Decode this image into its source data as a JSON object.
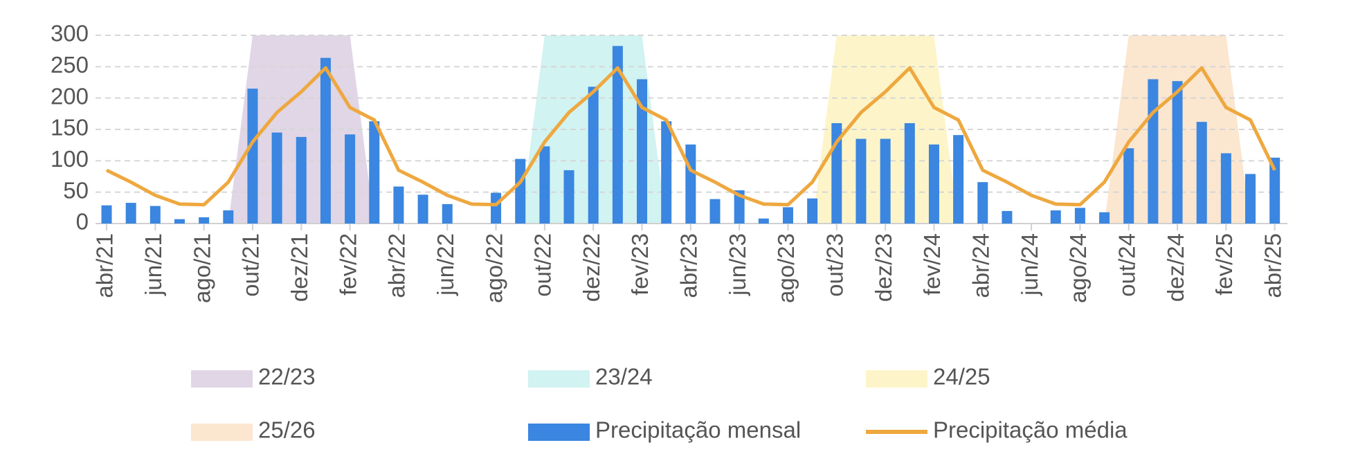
{
  "chart_data": {
    "type": "bar",
    "categories": [
      "abr/21",
      null,
      "jun/21",
      null,
      "ago/21",
      null,
      "out/21",
      null,
      "dez/21",
      null,
      "fev/22",
      null,
      "abr/22",
      null,
      "jun/22",
      null,
      "ago/22",
      null,
      "out/22",
      null,
      "dez/22",
      null,
      "fev/23",
      null,
      "abr/23",
      null,
      "jun/23",
      null,
      "ago/23",
      null,
      "out/23",
      null,
      "dez/23",
      null,
      "fev/24",
      null,
      "abr/24",
      null,
      "jun/24",
      null,
      "ago/24",
      null,
      "out/24",
      null,
      "dez/24",
      null,
      "fev/25",
      null,
      "abr/25"
    ],
    "series": [
      {
        "name": "22/23",
        "type": "area",
        "color": "#e0d6e6",
        "values": [
          null,
          null,
          null,
          null,
          null,
          0,
          300,
          300,
          300,
          300,
          300,
          0,
          null,
          null,
          null,
          null,
          null,
          null,
          null,
          null,
          null,
          null,
          null,
          null,
          null,
          null,
          null,
          null,
          null,
          null,
          null,
          null,
          null,
          null,
          null,
          null,
          null,
          null,
          null,
          null,
          null,
          null,
          null,
          null,
          null,
          null,
          null,
          null,
          null
        ]
      },
      {
        "name": "23/24",
        "type": "area",
        "color": "#d1f3f1",
        "values": [
          null,
          null,
          null,
          null,
          null,
          null,
          null,
          null,
          null,
          null,
          null,
          null,
          null,
          null,
          null,
          null,
          null,
          0,
          300,
          300,
          300,
          300,
          300,
          0,
          null,
          null,
          null,
          null,
          null,
          null,
          null,
          null,
          null,
          null,
          null,
          null,
          null,
          null,
          null,
          null,
          null,
          null,
          null,
          null,
          null,
          null,
          null,
          null,
          null
        ]
      },
      {
        "name": "24/25",
        "type": "area",
        "color": "#fdf5c9",
        "values": [
          null,
          null,
          null,
          null,
          null,
          null,
          null,
          null,
          null,
          null,
          null,
          null,
          null,
          null,
          null,
          null,
          null,
          null,
          null,
          null,
          null,
          null,
          null,
          null,
          null,
          null,
          null,
          null,
          null,
          0,
          300,
          300,
          300,
          300,
          300,
          0,
          null,
          null,
          null,
          null,
          null,
          null,
          null,
          null,
          null,
          null,
          null,
          null,
          null
        ]
      },
      {
        "name": "25/26",
        "type": "area",
        "color": "#fbe6d0",
        "values": [
          null,
          null,
          null,
          null,
          null,
          null,
          null,
          null,
          null,
          null,
          null,
          null,
          null,
          null,
          null,
          null,
          null,
          null,
          null,
          null,
          null,
          null,
          null,
          null,
          null,
          null,
          null,
          null,
          null,
          null,
          null,
          null,
          null,
          null,
          null,
          null,
          null,
          null,
          null,
          null,
          null,
          0,
          300,
          300,
          300,
          300,
          300,
          0,
          null
        ]
      },
      {
        "name": "Precipitação mensal",
        "type": "bar",
        "color": "#3a86e0",
        "values": [
          29,
          33,
          28,
          7,
          10,
          21,
          215,
          145,
          138,
          264,
          142,
          163,
          59,
          46,
          31,
          0,
          49,
          103,
          123,
          85,
          218,
          283,
          230,
          163,
          126,
          39,
          53,
          8,
          26,
          40,
          160,
          135,
          135,
          160,
          126,
          141,
          66,
          20,
          0,
          21,
          25,
          18,
          120,
          230,
          227,
          162,
          112,
          79,
          105
        ]
      },
      {
        "name": "Precipitação média",
        "type": "line",
        "color": "#eea83f",
        "values": [
          85,
          66,
          45,
          31,
          30,
          66,
          130,
          177,
          210,
          248,
          185,
          165,
          85,
          66,
          45,
          31,
          30,
          66,
          130,
          177,
          210,
          248,
          185,
          165,
          85,
          66,
          45,
          31,
          30,
          66,
          130,
          177,
          210,
          248,
          185,
          165,
          85,
          66,
          45,
          31,
          30,
          66,
          130,
          177,
          210,
          248,
          185,
          165,
          85
        ]
      }
    ],
    "ylim": [
      0,
      300
    ],
    "yticks": [
      0,
      50,
      100,
      150,
      200,
      250,
      300
    ],
    "grid": true
  }
}
